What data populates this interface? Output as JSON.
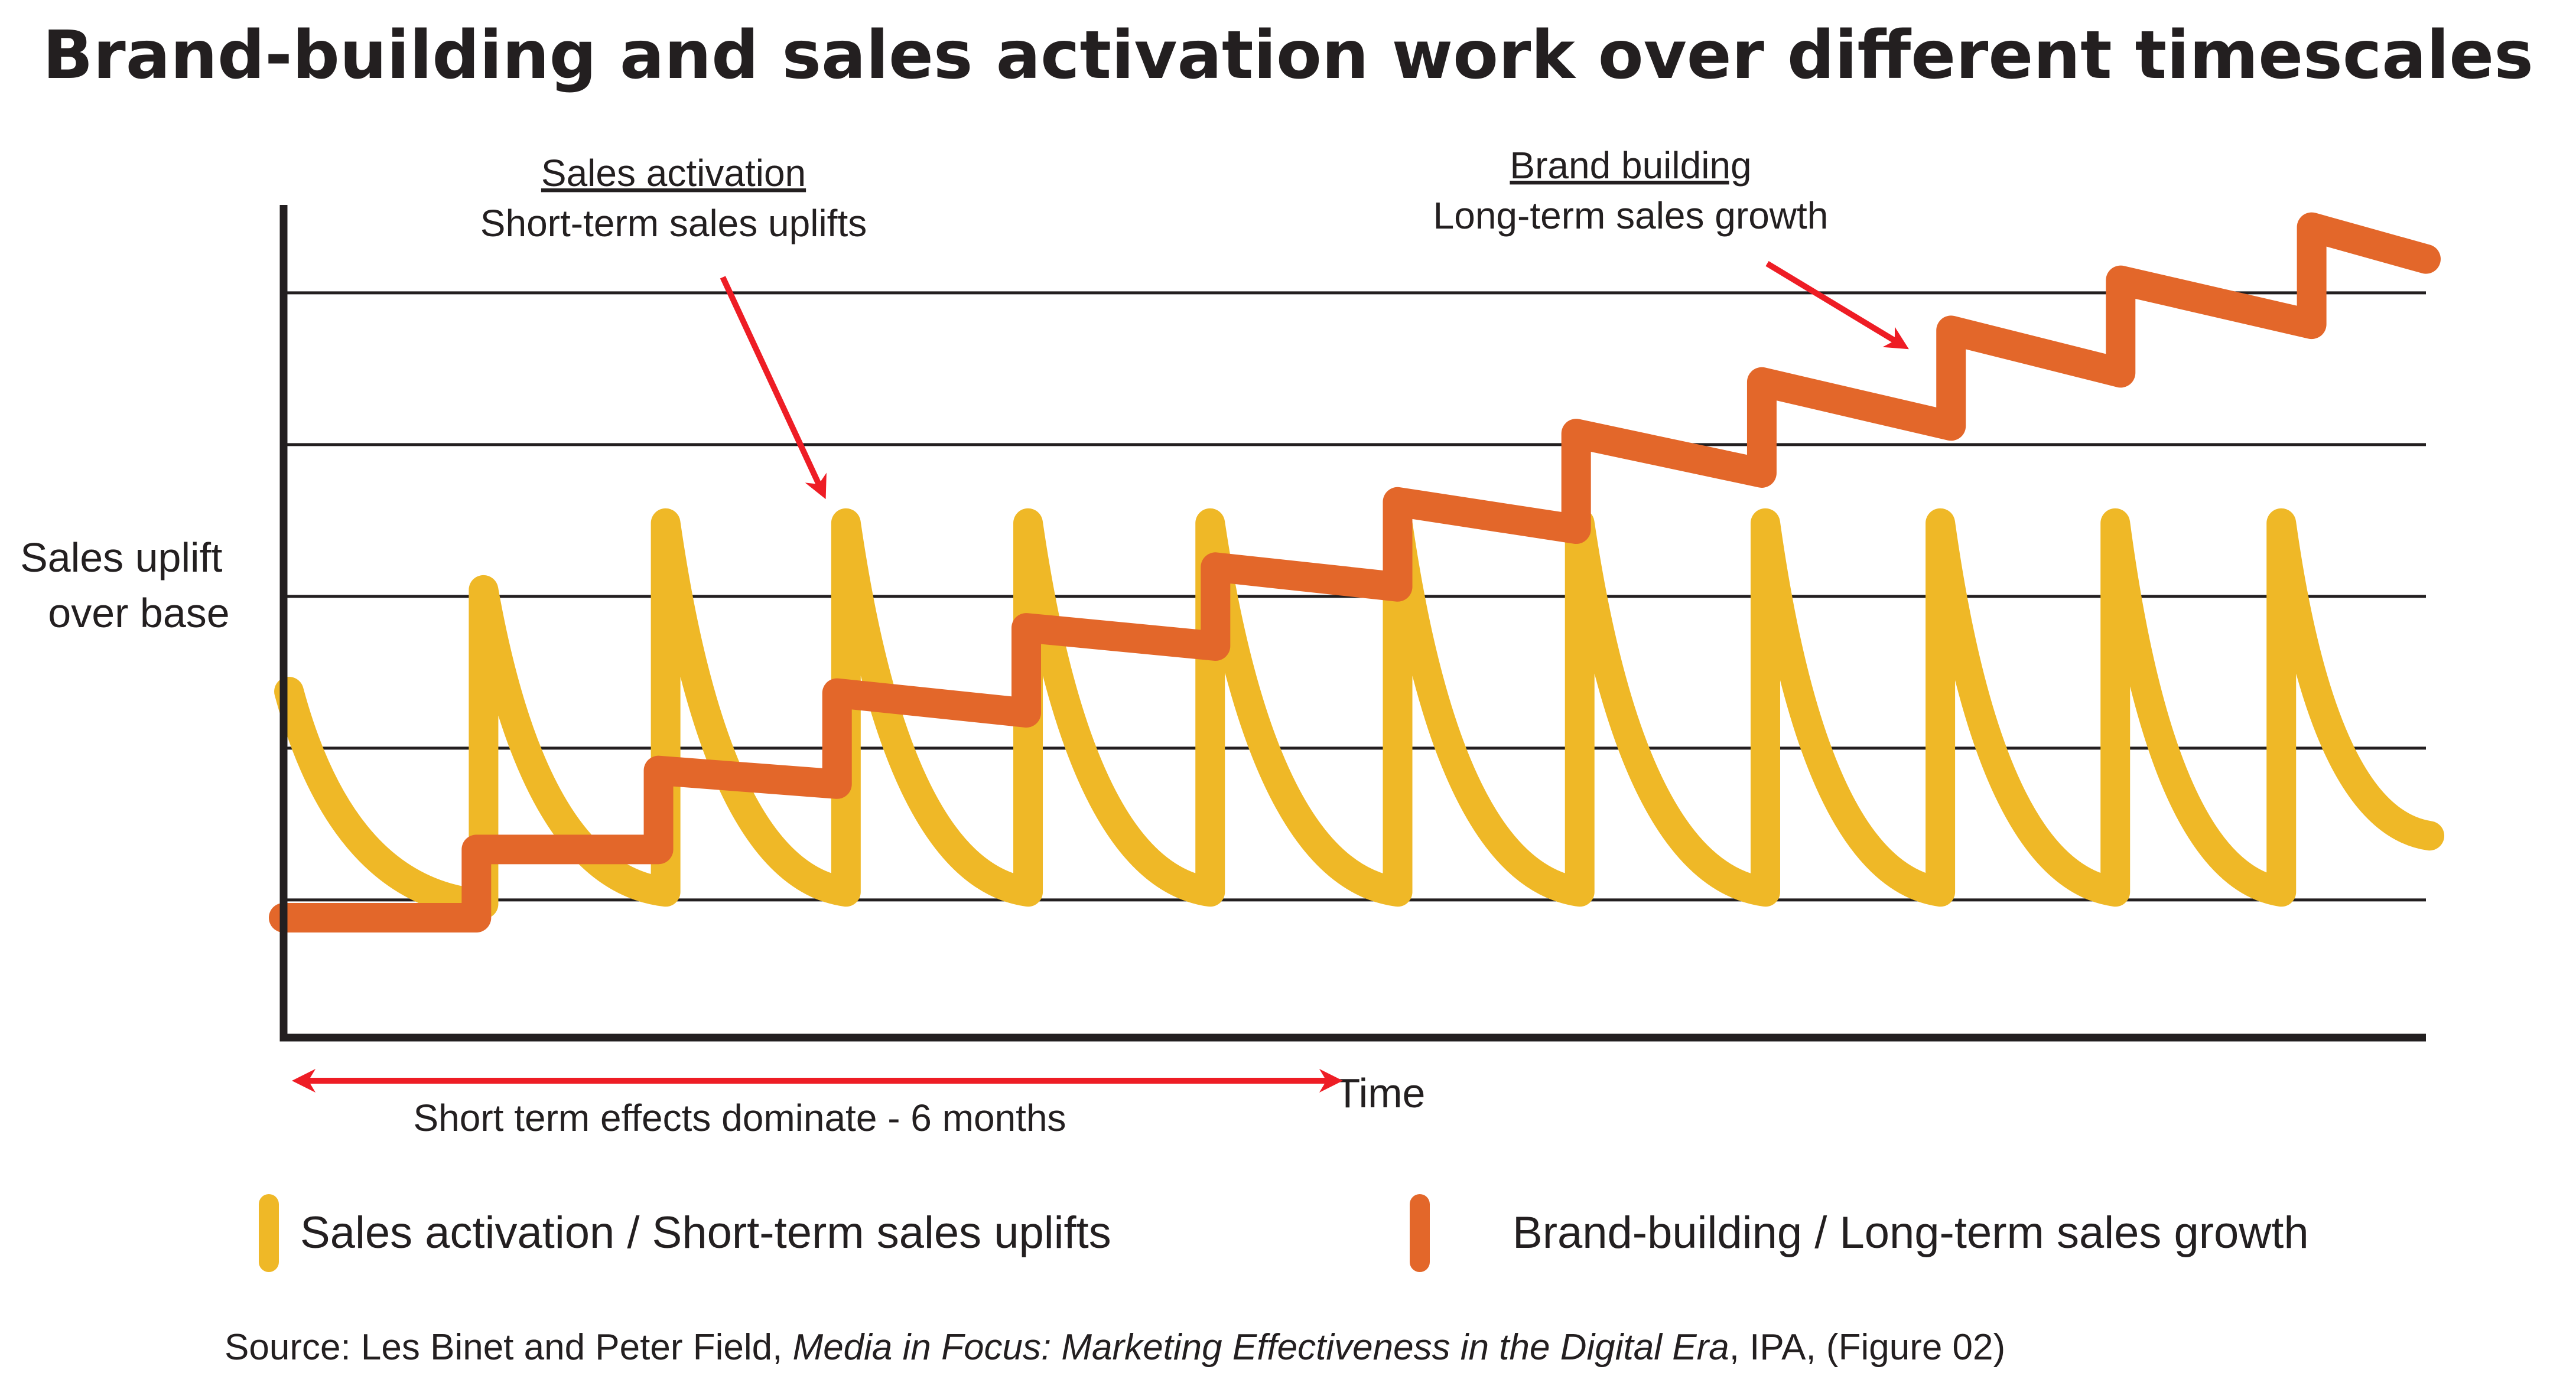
{
  "colors": {
    "sales_activation": "#EFB827",
    "brand_building": "#E3672A",
    "arrow": "#EE1D25",
    "text": "#231F20"
  },
  "chart_data": {
    "type": "line",
    "title": "Brand-building and sales activation work over different timescales",
    "xlabel": "Time",
    "ylabel": [
      "Sales uplift",
      "over base"
    ],
    "xlim": [
      0,
      12
    ],
    "ylim": [
      0,
      5.4
    ],
    "grid": true,
    "gridlines_y": [
      0.907,
      1.907,
      2.907,
      3.907,
      4.907
    ],
    "legend_position": "bottom",
    "series": [
      {
        "name": "Sales activation / Short-term sales uplifts",
        "color_key": "sales_activation",
        "shape": "sawtooth-decay",
        "start": [
          0.03,
          2.28
        ],
        "spikes": [
          {
            "t": 1.12,
            "trough": 0.88,
            "peak": 2.95
          },
          {
            "t": 2.14,
            "trough": 0.96,
            "peak": 3.39
          },
          {
            "t": 3.15,
            "trough": 0.96,
            "peak": 3.39
          },
          {
            "t": 4.17,
            "trough": 0.96,
            "peak": 3.39
          },
          {
            "t": 5.19,
            "trough": 0.96,
            "peak": 3.39
          },
          {
            "t": 6.24,
            "trough": 0.96,
            "peak": 3.39
          },
          {
            "t": 7.26,
            "trough": 0.96,
            "peak": 3.39
          },
          {
            "t": 8.3,
            "trough": 0.96,
            "peak": 3.39
          },
          {
            "t": 9.28,
            "trough": 0.96,
            "peak": 3.39
          },
          {
            "t": 10.26,
            "trough": 0.96,
            "peak": 3.39
          },
          {
            "t": 11.19,
            "trough": 0.96,
            "peak": 3.39
          }
        ],
        "end": [
          12.02,
          1.33
        ]
      },
      {
        "name": "Brand-building / Long-term sales growth",
        "color_key": "brand_building",
        "shape": "stepped-growth",
        "points": [
          [
            0,
            0.79
          ],
          [
            1.08,
            0.79
          ],
          [
            1.08,
            1.24
          ],
          [
            2.1,
            1.24
          ],
          [
            2.1,
            1.76
          ],
          [
            3.1,
            1.67
          ],
          [
            3.1,
            2.27
          ],
          [
            4.16,
            2.14
          ],
          [
            4.16,
            2.7
          ],
          [
            5.22,
            2.58
          ],
          [
            5.22,
            3.1
          ],
          [
            6.24,
            2.97
          ],
          [
            6.24,
            3.53
          ],
          [
            7.24,
            3.35
          ],
          [
            7.24,
            3.98
          ],
          [
            8.28,
            3.72
          ],
          [
            8.28,
            4.32
          ],
          [
            9.34,
            4.03
          ],
          [
            9.34,
            4.66
          ],
          [
            10.29,
            4.38
          ],
          [
            10.29,
            4.99
          ],
          [
            11.36,
            4.7
          ],
          [
            11.36,
            5.34
          ],
          [
            12.0,
            5.13
          ]
        ]
      }
    ],
    "annotations": [
      {
        "id": "sales-activation",
        "heading": "Sales activation",
        "subheading": "Short-term sales uplifts",
        "arrow_from": [
          2.46,
          5.01
        ],
        "arrow_to": [
          3.02,
          3.59
        ]
      },
      {
        "id": "brand-building",
        "heading": "Brand building",
        "subheading": "Long-term sales growth",
        "arrow_from": [
          8.31,
          5.1
        ],
        "arrow_to": [
          9.07,
          4.56
        ]
      }
    ],
    "range_marker": {
      "label": "Short term effects dominate - 6 months",
      "from": 0.02,
      "to": 5.96
    }
  },
  "legend": [
    {
      "label": "Sales activation / Short-term sales uplifts",
      "color_key": "sales_activation"
    },
    {
      "label": "Brand-building / Long-term sales growth",
      "color_key": "brand_building"
    }
  ],
  "source": {
    "prefix": "Source: Les Binet and Peter Field, ",
    "italic": "Media in Focus: Marketing Effectiveness in the Digital Era",
    "suffix": ", IPA, (Figure 02)"
  }
}
